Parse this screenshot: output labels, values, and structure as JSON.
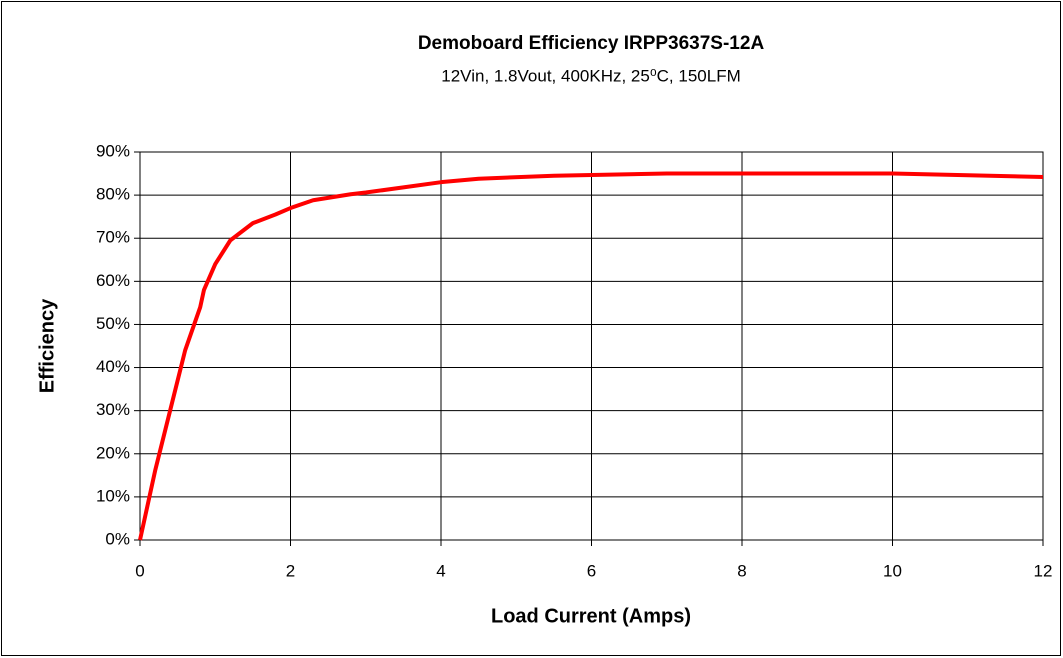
{
  "chart_data": {
    "type": "line",
    "title": "Demoboard Efficiency IRPP3637S-12A",
    "subtitle": "12Vin, 1.8Vout, 400KHz, 25⁰C, 150LFM",
    "xlabel": "Load Current (Amps)",
    "ylabel": "Efficiency",
    "x": [
      0,
      0.2,
      0.4,
      0.6,
      0.8,
      0.85,
      1.0,
      1.2,
      1.5,
      1.8,
      2.0,
      2.3,
      2.8,
      3.0,
      3.5,
      4.0,
      4.5,
      5.5,
      7,
      10,
      12
    ],
    "series": [
      {
        "color": "#ff0000",
        "values": [
          0,
          16,
          30,
          44,
          54,
          58,
          64,
          69.5,
          73.5,
          75.5,
          77,
          78.8,
          80.2,
          80.6,
          81.8,
          83,
          83.8,
          84.5,
          85,
          85,
          84.2
        ]
      }
    ],
    "xlim": [
      0,
      12
    ],
    "xticks": [
      0,
      2,
      4,
      6,
      8,
      10,
      12
    ],
    "ylim": [
      0,
      90
    ],
    "yticks": [
      {
        "value": 0,
        "label": "0%"
      },
      {
        "value": 10,
        "label": "10%"
      },
      {
        "value": 20,
        "label": "20%"
      },
      {
        "value": 30,
        "label": "30%"
      },
      {
        "value": 40,
        "label": "40%"
      },
      {
        "value": 50,
        "label": "50%"
      },
      {
        "value": 60,
        "label": "60%"
      },
      {
        "value": 70,
        "label": "70%"
      },
      {
        "value": 80,
        "label": "80%"
      },
      {
        "value": 90,
        "label": "90%"
      }
    ],
    "grid": true
  }
}
